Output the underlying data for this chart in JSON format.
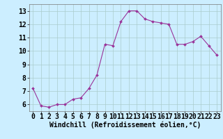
{
  "x": [
    0,
    1,
    2,
    3,
    4,
    5,
    6,
    7,
    8,
    9,
    10,
    11,
    12,
    13,
    14,
    15,
    16,
    17,
    18,
    19,
    20,
    21,
    22,
    23
  ],
  "y": [
    7.2,
    5.9,
    5.8,
    6.0,
    6.0,
    6.4,
    6.5,
    7.2,
    8.2,
    10.5,
    10.4,
    12.2,
    13.0,
    13.0,
    12.4,
    12.2,
    12.1,
    12.0,
    10.5,
    10.5,
    10.7,
    11.1,
    10.4,
    9.7
  ],
  "line_color": "#993399",
  "marker_color": "#993399",
  "bg_color": "#cceeff",
  "grid_color": "#aacccc",
  "xlabel": "Windchill (Refroidissement éolien,°C)",
  "xlim": [
    -0.5,
    23.5
  ],
  "ylim": [
    5.5,
    13.5
  ],
  "yticks": [
    6,
    7,
    8,
    9,
    10,
    11,
    12,
    13
  ],
  "xticks": [
    0,
    1,
    2,
    3,
    4,
    5,
    6,
    7,
    8,
    9,
    10,
    11,
    12,
    13,
    14,
    15,
    16,
    17,
    18,
    19,
    20,
    21,
    22,
    23
  ],
  "xtick_labels": [
    "0",
    "1",
    "2",
    "3",
    "4",
    "5",
    "6",
    "7",
    "8",
    "9",
    "10",
    "11",
    "12",
    "13",
    "14",
    "15",
    "16",
    "17",
    "18",
    "19",
    "20",
    "21",
    "22",
    "23"
  ],
  "label_fontsize": 7,
  "tick_fontsize": 7
}
